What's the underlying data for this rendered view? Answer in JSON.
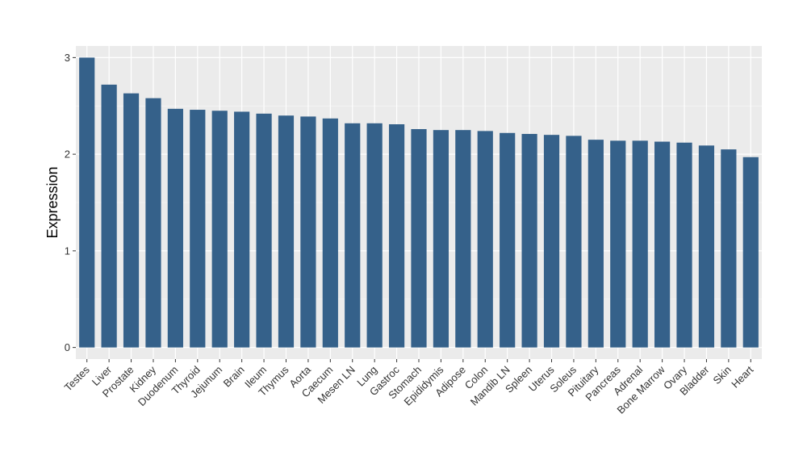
{
  "chart_data": {
    "type": "bar",
    "title": "",
    "xlabel": "",
    "ylabel": "Expression",
    "ylim": [
      -0.12,
      3.12
    ],
    "yticks": [
      0,
      1,
      2,
      3
    ],
    "grid": true,
    "legend": "none",
    "colors": {
      "bar": "#35618a",
      "panel": "#ebebeb",
      "grid_major": "#ffffff",
      "grid_minor": "#f5f5f5"
    },
    "categories": [
      "Testes",
      "Liver",
      "Prostate",
      "Kidney",
      "Duodenum",
      "Thyroid",
      "Jejunum",
      "Brain",
      "Ileum",
      "Thymus",
      "Aorta",
      "Caecum",
      "Mesen LN",
      "Lung",
      "Gastroc",
      "Stomach",
      "Epididymis",
      "Adipose",
      "Colon",
      "Mandib LN",
      "Spleen",
      "Uterus",
      "Soleus",
      "Pituitary",
      "Pancreas",
      "Adrenal",
      "Bone Marrow",
      "Ovary",
      "Bladder",
      "Skin",
      "Heart"
    ],
    "values": [
      3.0,
      2.72,
      2.63,
      2.58,
      2.47,
      2.46,
      2.45,
      2.44,
      2.42,
      2.4,
      2.39,
      2.37,
      2.32,
      2.32,
      2.31,
      2.26,
      2.25,
      2.25,
      2.24,
      2.22,
      2.21,
      2.2,
      2.19,
      2.15,
      2.14,
      2.14,
      2.13,
      2.12,
      2.09,
      2.05,
      1.97
    ]
  }
}
